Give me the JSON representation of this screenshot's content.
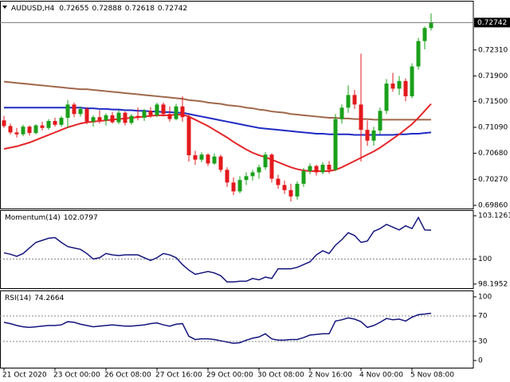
{
  "chart_data": {
    "type": "candlestick",
    "title": "AUDUSD,H4",
    "categories": [
      "21 Oct 2020",
      null,
      null,
      null,
      null,
      null,
      null,
      null,
      "23 Oct 00:00",
      null,
      null,
      null,
      null,
      null,
      null,
      null,
      "26 Oct 08:00",
      null,
      null,
      null,
      null,
      null,
      null,
      null,
      "27 Oct 16:00",
      null,
      null,
      null,
      null,
      null,
      null,
      null,
      "29 Oct 00:00",
      null,
      null,
      null,
      null,
      null,
      null,
      null,
      "30 Oct 08:00",
      null,
      null,
      null,
      null,
      null,
      null,
      null,
      "2 Nov 16:00",
      null,
      null,
      null,
      null,
      null,
      null,
      null,
      "4 Nov 00:00",
      null,
      null,
      null,
      null,
      null,
      null,
      null,
      "5 Nov 08:00",
      null,
      null,
      null
    ],
    "open": [
      0.712,
      0.7111,
      0.7101,
      0.7098,
      0.711,
      0.71,
      0.7112,
      0.7108,
      0.7119,
      0.7113,
      0.7124,
      0.7145,
      0.713,
      0.7138,
      0.7118,
      0.7125,
      0.712,
      0.7128,
      0.7117,
      0.7132,
      0.7116,
      0.7127,
      0.7124,
      0.7135,
      0.7128,
      0.7145,
      0.713,
      0.7122,
      0.7142,
      0.7125,
      0.7065,
      0.7058,
      0.7066,
      0.7052,
      0.7063,
      0.7042,
      0.7022,
      0.7008,
      0.7026,
      0.7032,
      0.7038,
      0.7046,
      0.7066,
      0.7028,
      0.7018,
      0.701,
      0.7,
      0.702,
      0.704,
      0.7048,
      0.7038,
      0.705,
      0.7042,
      0.7122,
      0.714,
      0.716,
      0.7145,
      0.7105,
      0.7088,
      0.7104,
      0.7135,
      0.7178,
      0.717,
      0.7182,
      0.7158,
      0.7205,
      0.7245,
      0.72655
    ],
    "high": [
      0.7127,
      0.7115,
      0.7108,
      0.7113,
      0.7112,
      0.7114,
      0.7118,
      0.7122,
      0.7124,
      0.7127,
      0.7152,
      0.7148,
      0.7142,
      0.7141,
      0.7128,
      0.7136,
      0.7131,
      0.7133,
      0.7136,
      0.7134,
      0.713,
      0.714,
      0.7138,
      0.7141,
      0.7148,
      0.7148,
      0.7142,
      0.7146,
      0.7158,
      0.7129,
      0.7072,
      0.707,
      0.7068,
      0.7068,
      0.7066,
      0.7046,
      0.703,
      0.7032,
      0.7038,
      0.7042,
      0.705,
      0.707,
      0.7068,
      0.7034,
      0.7025,
      0.702,
      0.7024,
      0.7045,
      0.7052,
      0.705,
      0.7054,
      0.7056,
      0.713,
      0.7145,
      0.7175,
      0.7168,
      0.7225,
      0.712,
      0.711,
      0.714,
      0.7185,
      0.7195,
      0.719,
      0.7186,
      0.721,
      0.725,
      0.7268,
      0.72888
    ],
    "low": [
      0.7108,
      0.7098,
      0.7093,
      0.7095,
      0.7096,
      0.7098,
      0.7104,
      0.7105,
      0.711,
      0.711,
      0.7108,
      0.7125,
      0.7126,
      0.7114,
      0.711,
      0.7115,
      0.7112,
      0.7115,
      0.7114,
      0.7112,
      0.7113,
      0.712,
      0.7119,
      0.7124,
      0.7125,
      0.7126,
      0.7118,
      0.712,
      0.7118,
      0.7055,
      0.705,
      0.7054,
      0.7048,
      0.705,
      0.7038,
      0.7015,
      0.7002,
      0.7005,
      0.7018,
      0.7025,
      0.7028,
      0.7042,
      0.7022,
      0.7012,
      0.7004,
      0.6992,
      0.6995,
      0.7015,
      0.7035,
      0.7033,
      0.7035,
      0.7036,
      0.704,
      0.7115,
      0.7132,
      0.7138,
      0.7055,
      0.708,
      0.708,
      0.7098,
      0.713,
      0.7165,
      0.716,
      0.715,
      0.7155,
      0.72,
      0.7232,
      0.72618
    ],
    "close": [
      0.7111,
      0.7101,
      0.7098,
      0.711,
      0.71,
      0.7112,
      0.7108,
      0.7119,
      0.7113,
      0.7124,
      0.7145,
      0.713,
      0.7138,
      0.7118,
      0.7125,
      0.712,
      0.7128,
      0.7117,
      0.7132,
      0.7116,
      0.7127,
      0.7124,
      0.7135,
      0.7128,
      0.7145,
      0.713,
      0.7122,
      0.7142,
      0.7125,
      0.7065,
      0.7058,
      0.7066,
      0.7052,
      0.7063,
      0.7042,
      0.7022,
      0.7008,
      0.7026,
      0.7032,
      0.7038,
      0.7046,
      0.7066,
      0.7028,
      0.7018,
      0.701,
      0.7,
      0.702,
      0.704,
      0.7048,
      0.7038,
      0.705,
      0.7042,
      0.7122,
      0.714,
      0.716,
      0.7145,
      0.7105,
      0.7088,
      0.7104,
      0.7135,
      0.7178,
      0.717,
      0.7182,
      0.7158,
      0.7205,
      0.7245,
      0.72655,
      0.72742
    ],
    "up_color": "#1aa01a",
    "down_color": "#e3191c",
    "ylim": [
      0.6981,
      0.73085
    ],
    "yticks": [
      {
        "value": 0.7231,
        "label": "0.72310"
      },
      {
        "value": 0.719,
        "label": "0.71900"
      },
      {
        "value": 0.715,
        "label": "0.71500"
      },
      {
        "value": 0.7109,
        "label": "0.71090"
      },
      {
        "value": 0.7068,
        "label": "0.70680"
      },
      {
        "value": 0.7027,
        "label": "0.70270"
      },
      {
        "value": 0.6986,
        "label": "0.69860"
      }
    ],
    "moving_averages": [
      {
        "color": "#a0674a",
        "values": [
          0.7181,
          0.718,
          0.7179,
          0.7178,
          0.7177,
          0.7176,
          0.7175,
          0.7174,
          0.7173,
          0.7172,
          0.7171,
          0.717,
          0.7169,
          0.7169,
          0.7168,
          0.7167,
          0.7166,
          0.7165,
          0.7164,
          0.7163,
          0.7162,
          0.7161,
          0.716,
          0.7159,
          0.7158,
          0.7157,
          0.7156,
          0.7155,
          0.7154,
          0.7152,
          0.7151,
          0.715,
          0.7148,
          0.7147,
          0.7146,
          0.7144,
          0.7143,
          0.7142,
          0.714,
          0.7139,
          0.7137,
          0.7136,
          0.7134,
          0.7133,
          0.7132,
          0.713,
          0.7129,
          0.7128,
          0.7127,
          0.7126,
          0.7125,
          0.7124,
          0.7124,
          0.7123,
          0.7123,
          0.7122,
          0.7122,
          0.7122,
          0.7121,
          0.7121,
          0.7121,
          0.7121,
          0.7121,
          0.7121,
          0.7121,
          0.7121,
          0.7121,
          0.7121
        ]
      },
      {
        "color": "#1f2bc4",
        "values": [
          0.714,
          0.714,
          0.714,
          0.714,
          0.714,
          0.714,
          0.714,
          0.714,
          0.714,
          0.714,
          0.714,
          0.714,
          0.714,
          0.7139,
          0.7139,
          0.7138,
          0.7138,
          0.7137,
          0.7137,
          0.7136,
          0.7136,
          0.7135,
          0.7135,
          0.7134,
          0.7134,
          0.7133,
          0.7133,
          0.7132,
          0.7132,
          0.713,
          0.7128,
          0.7126,
          0.7124,
          0.7122,
          0.712,
          0.7118,
          0.7116,
          0.7114,
          0.7112,
          0.711,
          0.7108,
          0.7107,
          0.7106,
          0.7105,
          0.7104,
          0.7103,
          0.7102,
          0.7101,
          0.71,
          0.7099,
          0.7099,
          0.7098,
          0.7098,
          0.7098,
          0.7098,
          0.7097,
          0.7097,
          0.7097,
          0.7097,
          0.7097,
          0.7097,
          0.7097,
          0.7098,
          0.7098,
          0.7099,
          0.7099,
          0.71,
          0.7101
        ]
      },
      {
        "color": "#e4262a",
        "values": [
          0.7075,
          0.7077,
          0.7079,
          0.7082,
          0.7085,
          0.7089,
          0.7093,
          0.7097,
          0.7101,
          0.7105,
          0.7109,
          0.7112,
          0.7115,
          0.7117,
          0.7118,
          0.7119,
          0.712,
          0.7121,
          0.7122,
          0.7123,
          0.7124,
          0.7125,
          0.7126,
          0.7127,
          0.7128,
          0.7128,
          0.7128,
          0.7129,
          0.7129,
          0.7126,
          0.7121,
          0.7116,
          0.7111,
          0.7105,
          0.7099,
          0.7093,
          0.7086,
          0.708,
          0.7074,
          0.7069,
          0.7065,
          0.7062,
          0.7058,
          0.7054,
          0.705,
          0.7046,
          0.7043,
          0.7041,
          0.704,
          0.704,
          0.704,
          0.704,
          0.7042,
          0.7046,
          0.7051,
          0.7056,
          0.7061,
          0.7066,
          0.7071,
          0.7077,
          0.7084,
          0.7091,
          0.7098,
          0.7106,
          0.7114,
          0.7124,
          0.7135,
          0.7146
        ]
      }
    ],
    "indicators": [
      {
        "name": "Momentum(14)",
        "color": "#14147e",
        "values": [
          100.45,
          100.35,
          100.2,
          100.4,
          100.8,
          101.2,
          101.35,
          101.5,
          101.55,
          101.2,
          100.9,
          100.8,
          100.7,
          100.4,
          100.0,
          100.1,
          100.4,
          100.3,
          100.25,
          100.3,
          100.3,
          100.3,
          100.1,
          99.9,
          100.1,
          100.4,
          100.3,
          100.1,
          99.6,
          99.2,
          98.9,
          99.0,
          99.1,
          99.0,
          98.8,
          98.35,
          98.35,
          98.4,
          98.4,
          98.6,
          98.5,
          98.7,
          98.6,
          99.3,
          99.3,
          99.3,
          99.4,
          99.6,
          99.8,
          100.3,
          100.6,
          100.4,
          101.0,
          101.4,
          101.9,
          101.7,
          101.2,
          101.3,
          102.0,
          102.2,
          102.5,
          102.3,
          102.1,
          102.4,
          102.2,
          103.0,
          102.1,
          102.0797
        ],
        "ylim": [
          97.905,
          103.532
        ],
        "yticks": [
          103.1261,
          100,
          98.1952
        ],
        "levels": [
          100
        ]
      },
      {
        "name": "RSI(14)",
        "color": "#14147e",
        "values": [
          60,
          58,
          55,
          53,
          52,
          53,
          54,
          55,
          55,
          56,
          61,
          60,
          57,
          55,
          53,
          54,
          55,
          56,
          55,
          54,
          54,
          55,
          56,
          58,
          59,
          56,
          54,
          57,
          58,
          38,
          33,
          34,
          34,
          33,
          31,
          29,
          27,
          28,
          32,
          35,
          37,
          42,
          34,
          32,
          32,
          33,
          33,
          36,
          40,
          41,
          42,
          42,
          62,
          64,
          67,
          65,
          61,
          52,
          55,
          60,
          66,
          64,
          65,
          62,
          68,
          72,
          73,
          74.2664
        ],
        "ylim": [
          -11.25,
          110
        ],
        "yticks": [
          100,
          70,
          30,
          0
        ],
        "levels": [
          70,
          30
        ]
      }
    ]
  }
}
